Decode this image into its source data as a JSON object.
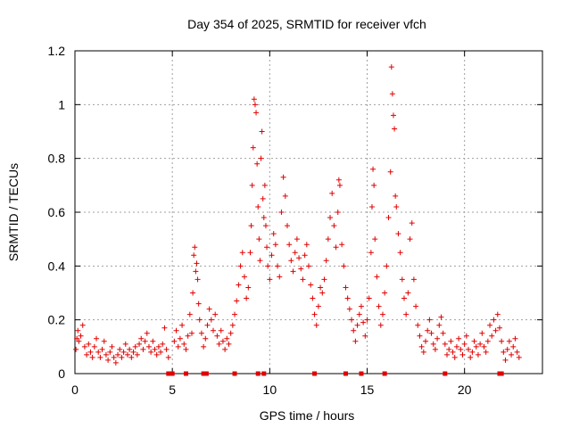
{
  "chart_data": {
    "type": "scatter",
    "title": "Day 354 of 2025, SRMTID for receiver vfch",
    "xlabel": "GPS time / hours",
    "ylabel": "SRMTID / TECUs",
    "xlim": [
      0,
      24
    ],
    "ylim": [
      0,
      1.2
    ],
    "grid": true,
    "x_ticks": [
      0,
      5,
      10,
      15,
      20
    ],
    "x_tick_labels": [
      "0",
      "5",
      "10",
      "15",
      "20"
    ],
    "y_ticks": [
      0,
      0.2,
      0.4,
      0.6,
      0.8,
      1.0,
      1.2
    ],
    "y_tick_labels": [
      "0",
      "0.2",
      "0.4",
      "0.6",
      "0.8",
      "1",
      "1.2"
    ],
    "marker": "+",
    "color": "#e00000",
    "series": [
      {
        "name": "SRMTID",
        "points": [
          [
            0.05,
            0.09
          ],
          [
            0.1,
            0.13
          ],
          [
            0.15,
            0.16
          ],
          [
            0.2,
            0.12
          ],
          [
            0.3,
            0.14
          ],
          [
            0.4,
            0.18
          ],
          [
            0.5,
            0.1
          ],
          [
            0.6,
            0.07
          ],
          [
            0.7,
            0.11
          ],
          [
            0.8,
            0.08
          ],
          [
            0.9,
            0.06
          ],
          [
            1.0,
            0.1
          ],
          [
            1.1,
            0.13
          ],
          [
            1.2,
            0.08
          ],
          [
            1.3,
            0.06
          ],
          [
            1.4,
            0.09
          ],
          [
            1.5,
            0.12
          ],
          [
            1.6,
            0.07
          ],
          [
            1.7,
            0.05
          ],
          [
            1.8,
            0.08
          ],
          [
            1.9,
            0.1
          ],
          [
            2.0,
            0.06
          ],
          [
            2.1,
            0.04
          ],
          [
            2.2,
            0.07
          ],
          [
            2.3,
            0.09
          ],
          [
            2.4,
            0.06
          ],
          [
            2.5,
            0.08
          ],
          [
            2.6,
            0.11
          ],
          [
            2.7,
            0.07
          ],
          [
            2.8,
            0.09
          ],
          [
            2.9,
            0.06
          ],
          [
            3.0,
            0.08
          ],
          [
            3.1,
            0.1
          ],
          [
            3.2,
            0.07
          ],
          [
            3.3,
            0.11
          ],
          [
            3.4,
            0.13
          ],
          [
            3.5,
            0.09
          ],
          [
            3.6,
            0.12
          ],
          [
            3.7,
            0.15
          ],
          [
            3.8,
            0.1
          ],
          [
            3.9,
            0.08
          ],
          [
            4.0,
            0.12
          ],
          [
            4.1,
            0.09
          ],
          [
            4.2,
            0.07
          ],
          [
            4.3,
            0.1
          ],
          [
            4.4,
            0.08
          ],
          [
            4.5,
            0.11
          ],
          [
            4.6,
            0.17
          ],
          [
            4.7,
            0.09
          ],
          [
            4.8,
            0.06
          ],
          [
            5.1,
            0.12
          ],
          [
            5.2,
            0.16
          ],
          [
            5.3,
            0.1
          ],
          [
            5.4,
            0.13
          ],
          [
            5.5,
            0.18
          ],
          [
            5.6,
            0.11
          ],
          [
            5.7,
            0.09
          ],
          [
            5.8,
            0.14
          ],
          [
            5.9,
            0.22
          ],
          [
            6.0,
            0.15
          ],
          [
            6.05,
            0.3
          ],
          [
            6.1,
            0.44
          ],
          [
            6.15,
            0.47
          ],
          [
            6.2,
            0.38
          ],
          [
            6.25,
            0.41
          ],
          [
            6.3,
            0.35
          ],
          [
            6.35,
            0.26
          ],
          [
            6.4,
            0.2
          ],
          [
            6.5,
            0.15
          ],
          [
            6.6,
            0.1
          ],
          [
            6.7,
            0.13
          ],
          [
            6.8,
            0.18
          ],
          [
            6.9,
            0.24
          ],
          [
            7.0,
            0.2
          ],
          [
            7.1,
            0.16
          ],
          [
            7.2,
            0.22
          ],
          [
            7.3,
            0.14
          ],
          [
            7.4,
            0.11
          ],
          [
            7.5,
            0.16
          ],
          [
            7.6,
            0.12
          ],
          [
            7.7,
            0.09
          ],
          [
            7.8,
            0.13
          ],
          [
            7.9,
            0.11
          ],
          [
            8.0,
            0.15
          ],
          [
            8.1,
            0.18
          ],
          [
            8.2,
            0.22
          ],
          [
            8.3,
            0.27
          ],
          [
            8.4,
            0.33
          ],
          [
            8.5,
            0.4
          ],
          [
            8.6,
            0.45
          ],
          [
            8.7,
            0.36
          ],
          [
            8.8,
            0.28
          ],
          [
            8.9,
            0.32
          ],
          [
            9.0,
            0.45
          ],
          [
            9.05,
            0.55
          ],
          [
            9.1,
            0.7
          ],
          [
            9.15,
            0.84
          ],
          [
            9.2,
            1.02
          ],
          [
            9.25,
            1.0
          ],
          [
            9.3,
            0.97
          ],
          [
            9.35,
            0.78
          ],
          [
            9.4,
            0.62
          ],
          [
            9.45,
            0.5
          ],
          [
            9.5,
            0.42
          ],
          [
            9.55,
            0.8
          ],
          [
            9.6,
            0.9
          ],
          [
            9.65,
            0.65
          ],
          [
            9.7,
            0.58
          ],
          [
            9.75,
            0.7
          ],
          [
            9.8,
            0.55
          ],
          [
            9.85,
            0.47
          ],
          [
            9.9,
            0.4
          ],
          [
            10.0,
            0.35
          ],
          [
            10.1,
            0.44
          ],
          [
            10.2,
            0.52
          ],
          [
            10.3,
            0.48
          ],
          [
            10.4,
            0.4
          ],
          [
            10.5,
            0.36
          ],
          [
            10.6,
            0.6
          ],
          [
            10.7,
            0.73
          ],
          [
            10.8,
            0.66
          ],
          [
            10.9,
            0.55
          ],
          [
            11.0,
            0.48
          ],
          [
            11.1,
            0.42
          ],
          [
            11.2,
            0.38
          ],
          [
            11.3,
            0.45
          ],
          [
            11.4,
            0.5
          ],
          [
            11.5,
            0.43
          ],
          [
            11.6,
            0.39
          ],
          [
            11.7,
            0.35
          ],
          [
            11.8,
            0.44
          ],
          [
            11.9,
            0.48
          ],
          [
            12.0,
            0.4
          ],
          [
            12.1,
            0.33
          ],
          [
            12.2,
            0.28
          ],
          [
            12.3,
            0.22
          ],
          [
            12.4,
            0.18
          ],
          [
            12.5,
            0.25
          ],
          [
            12.6,
            0.32
          ],
          [
            12.7,
            0.3
          ],
          [
            12.8,
            0.35
          ],
          [
            12.9,
            0.42
          ],
          [
            13.0,
            0.5
          ],
          [
            13.1,
            0.58
          ],
          [
            13.2,
            0.67
          ],
          [
            13.3,
            0.55
          ],
          [
            13.4,
            0.47
          ],
          [
            13.5,
            0.6
          ],
          [
            13.55,
            0.72
          ],
          [
            13.6,
            0.7
          ],
          [
            13.7,
            0.48
          ],
          [
            13.8,
            0.4
          ],
          [
            13.9,
            0.32
          ],
          [
            14.0,
            0.28
          ],
          [
            14.1,
            0.24
          ],
          [
            14.2,
            0.2
          ],
          [
            14.3,
            0.16
          ],
          [
            14.4,
            0.12
          ],
          [
            14.5,
            0.18
          ],
          [
            14.6,
            0.22
          ],
          [
            14.7,
            0.25
          ],
          [
            14.8,
            0.19
          ],
          [
            14.9,
            0.14
          ],
          [
            15.0,
            0.2
          ],
          [
            15.1,
            0.28
          ],
          [
            15.2,
            0.45
          ],
          [
            15.25,
            0.62
          ],
          [
            15.3,
            0.76
          ],
          [
            15.35,
            0.7
          ],
          [
            15.4,
            0.5
          ],
          [
            15.5,
            0.36
          ],
          [
            15.6,
            0.25
          ],
          [
            15.7,
            0.18
          ],
          [
            15.8,
            0.22
          ],
          [
            15.9,
            0.3
          ],
          [
            16.0,
            0.4
          ],
          [
            16.1,
            0.58
          ],
          [
            16.2,
            0.75
          ],
          [
            16.25,
            1.14
          ],
          [
            16.3,
            1.04
          ],
          [
            16.35,
            0.96
          ],
          [
            16.4,
            0.91
          ],
          [
            16.45,
            0.66
          ],
          [
            16.5,
            0.62
          ],
          [
            16.6,
            0.52
          ],
          [
            16.7,
            0.45
          ],
          [
            16.8,
            0.35
          ],
          [
            16.9,
            0.28
          ],
          [
            17.0,
            0.22
          ],
          [
            17.1,
            0.3
          ],
          [
            17.2,
            0.5
          ],
          [
            17.3,
            0.56
          ],
          [
            17.4,
            0.35
          ],
          [
            17.5,
            0.25
          ],
          [
            17.6,
            0.18
          ],
          [
            17.7,
            0.14
          ],
          [
            17.8,
            0.1
          ],
          [
            17.9,
            0.08
          ],
          [
            18.0,
            0.12
          ],
          [
            18.1,
            0.16
          ],
          [
            18.2,
            0.2
          ],
          [
            18.3,
            0.15
          ],
          [
            18.4,
            0.11
          ],
          [
            18.5,
            0.09
          ],
          [
            18.6,
            0.13
          ],
          [
            18.7,
            0.18
          ],
          [
            18.8,
            0.21
          ],
          [
            18.9,
            0.15
          ],
          [
            19.0,
            0.11
          ],
          [
            19.1,
            0.07
          ],
          [
            19.2,
            0.09
          ],
          [
            19.3,
            0.12
          ],
          [
            19.4,
            0.08
          ],
          [
            19.5,
            0.06
          ],
          [
            19.6,
            0.1
          ],
          [
            19.7,
            0.13
          ],
          [
            19.8,
            0.09
          ],
          [
            19.9,
            0.07
          ],
          [
            20.0,
            0.11
          ],
          [
            20.1,
            0.14
          ],
          [
            20.2,
            0.09
          ],
          [
            20.3,
            0.06
          ],
          [
            20.4,
            0.08
          ],
          [
            20.5,
            0.12
          ],
          [
            20.6,
            0.1
          ],
          [
            20.7,
            0.07
          ],
          [
            20.8,
            0.11
          ],
          [
            20.9,
            0.15
          ],
          [
            21.0,
            0.1
          ],
          [
            21.1,
            0.08
          ],
          [
            21.2,
            0.12
          ],
          [
            21.3,
            0.18
          ],
          [
            21.4,
            0.14
          ],
          [
            21.5,
            0.2
          ],
          [
            21.6,
            0.16
          ],
          [
            21.7,
            0.22
          ],
          [
            21.8,
            0.17
          ],
          [
            21.9,
            0.12
          ],
          [
            22.0,
            0.08
          ],
          [
            22.1,
            0.05
          ],
          [
            22.2,
            0.09
          ],
          [
            22.3,
            0.12
          ],
          [
            22.4,
            0.07
          ],
          [
            22.5,
            0.1
          ],
          [
            22.6,
            0.13
          ],
          [
            22.7,
            0.08
          ],
          [
            22.8,
            0.06
          ]
        ]
      }
    ],
    "gap_markers_x": [
      4.8,
      5.0,
      5.7,
      6.6,
      6.75,
      8.2,
      9.4,
      9.7,
      12.3,
      13.9,
      14.7,
      15.9,
      19.0,
      21.8,
      21.9
    ]
  }
}
